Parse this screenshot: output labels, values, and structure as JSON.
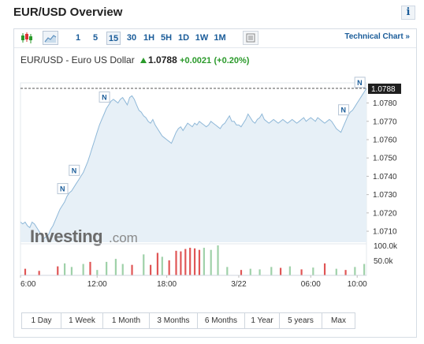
{
  "header": {
    "title": "EUR/USD Overview",
    "info_icon": "i"
  },
  "toolbar": {
    "timeframes": [
      "1",
      "5",
      "15",
      "30",
      "1H",
      "5H",
      "1D",
      "1W",
      "1M"
    ],
    "active_timeframe": "15",
    "technical_chart_label": "Technical Chart »"
  },
  "quote": {
    "name": "EUR/USD - Euro US Dollar",
    "price": "1.0788",
    "change": "+0.0021",
    "change_pct": "(+0.20%)",
    "up_color": "#2b9a2b"
  },
  "logo": {
    "text": "Investing",
    "suffix": ".com"
  },
  "ranges": [
    "1 Day",
    "1 Week",
    "1 Month",
    "3 Months",
    "6 Months",
    "1 Year",
    "5 years",
    "Max"
  ],
  "chart_data": {
    "type": "area",
    "price_ticks": [
      "1.0780",
      "1.0770",
      "1.0760",
      "1.0750",
      "1.0740",
      "1.0730",
      "1.0720",
      "1.0710"
    ],
    "ylim": [
      1.0704,
      1.0791
    ],
    "last_price_label": "1.0788",
    "last_price": 1.0788,
    "volume_ticks": [
      "100.0k",
      "50.0k"
    ],
    "volume_max": 100000,
    "x_tick_labels": [
      "6:00",
      "12:00",
      "18:00",
      "3/22",
      "06:00",
      "10:00"
    ],
    "x_tick_index": [
      0,
      33,
      63,
      94,
      125,
      145
    ],
    "n_points": 150,
    "line_color": "#8fb8d8",
    "fill_color": "#e7f0f7",
    "news_markers": [
      {
        "label": "N",
        "index": 18
      },
      {
        "label": "N",
        "index": 23
      },
      {
        "label": "N",
        "index": 36
      },
      {
        "label": "N",
        "index": 139
      },
      {
        "label": "N",
        "index": 146
      }
    ],
    "prices": [
      1.0715,
      1.0714,
      1.0715,
      1.0713,
      1.0712,
      1.0715,
      1.0714,
      1.0712,
      1.071,
      1.0708,
      1.0706,
      1.0707,
      1.0708,
      1.0711,
      1.0713,
      1.0716,
      1.0719,
      1.0722,
      1.0724,
      1.0726,
      1.0729,
      1.0731,
      1.0732,
      1.0734,
      1.0736,
      1.0738,
      1.074,
      1.0742,
      1.0745,
      1.0748,
      1.0752,
      1.0756,
      1.076,
      1.0764,
      1.0768,
      1.0771,
      1.0774,
      1.0777,
      1.0779,
      1.0781,
      1.0782,
      1.0781,
      1.078,
      1.0782,
      1.0783,
      1.0781,
      1.0779,
      1.0783,
      1.0784,
      1.0782,
      1.0779,
      1.0776,
      1.0775,
      1.0773,
      1.0772,
      1.077,
      1.0769,
      1.0771,
      1.0768,
      1.0766,
      1.0764,
      1.0762,
      1.0761,
      1.076,
      1.0759,
      1.0758,
      1.0761,
      1.0764,
      1.0766,
      1.0767,
      1.0765,
      1.0767,
      1.0769,
      1.0768,
      1.0767,
      1.0769,
      1.0768,
      1.077,
      1.0769,
      1.0768,
      1.0767,
      1.0768,
      1.077,
      1.0769,
      1.0768,
      1.0767,
      1.0766,
      1.0768,
      1.0769,
      1.0771,
      1.0773,
      1.077,
      1.077,
      1.0768,
      1.0768,
      1.0767,
      1.0769,
      1.0771,
      1.0774,
      1.0772,
      1.077,
      1.0769,
      1.0771,
      1.0772,
      1.0774,
      1.0771,
      1.077,
      1.0769,
      1.077,
      1.0771,
      1.077,
      1.0769,
      1.077,
      1.0771,
      1.077,
      1.0769,
      1.077,
      1.0771,
      1.077,
      1.0769,
      1.077,
      1.0771,
      1.0772,
      1.077,
      1.0771,
      1.0772,
      1.0771,
      1.077,
      1.0772,
      1.0771,
      1.077,
      1.0769,
      1.077,
      1.0771,
      1.077,
      1.0768,
      1.0766,
      1.0765,
      1.0764,
      1.0767,
      1.077,
      1.0773,
      1.0775,
      1.0776,
      1.0778,
      1.078,
      1.0782,
      1.0784,
      1.0786,
      1.0788
    ],
    "volume_bars": [
      {
        "index": 2,
        "value": 22000,
        "dir": "down"
      },
      {
        "index": 8,
        "value": 15000,
        "dir": "down"
      },
      {
        "index": 16,
        "value": 30000,
        "dir": "down"
      },
      {
        "index": 19,
        "value": 40000,
        "dir": "up"
      },
      {
        "index": 22,
        "value": 28000,
        "dir": "up"
      },
      {
        "index": 27,
        "value": 38000,
        "dir": "up"
      },
      {
        "index": 30,
        "value": 45000,
        "dir": "down"
      },
      {
        "index": 33,
        "value": 18000,
        "dir": "up"
      },
      {
        "index": 37,
        "value": 45000,
        "dir": "up"
      },
      {
        "index": 41,
        "value": 55000,
        "dir": "up"
      },
      {
        "index": 44,
        "value": 38000,
        "dir": "up"
      },
      {
        "index": 48,
        "value": 35000,
        "dir": "down"
      },
      {
        "index": 53,
        "value": 70000,
        "dir": "up"
      },
      {
        "index": 56,
        "value": 35000,
        "dir": "down"
      },
      {
        "index": 59,
        "value": 75000,
        "dir": "down"
      },
      {
        "index": 61,
        "value": 62000,
        "dir": "up"
      },
      {
        "index": 64,
        "value": 50000,
        "dir": "down"
      },
      {
        "index": 67,
        "value": 82000,
        "dir": "down"
      },
      {
        "index": 69,
        "value": 80000,
        "dir": "down"
      },
      {
        "index": 71,
        "value": 88000,
        "dir": "down"
      },
      {
        "index": 73,
        "value": 92000,
        "dir": "down"
      },
      {
        "index": 75,
        "value": 90000,
        "dir": "down"
      },
      {
        "index": 77,
        "value": 85000,
        "dir": "down"
      },
      {
        "index": 79,
        "value": 92000,
        "dir": "up"
      },
      {
        "index": 82,
        "value": 85000,
        "dir": "up"
      },
      {
        "index": 85,
        "value": 100000,
        "dir": "up"
      },
      {
        "index": 89,
        "value": 28000,
        "dir": "up"
      },
      {
        "index": 95,
        "value": 18000,
        "dir": "down"
      },
      {
        "index": 99,
        "value": 22000,
        "dir": "up"
      },
      {
        "index": 103,
        "value": 20000,
        "dir": "up"
      },
      {
        "index": 108,
        "value": 28000,
        "dir": "up"
      },
      {
        "index": 112,
        "value": 25000,
        "dir": "down"
      },
      {
        "index": 116,
        "value": 30000,
        "dir": "up"
      },
      {
        "index": 121,
        "value": 20000,
        "dir": "down"
      },
      {
        "index": 126,
        "value": 26000,
        "dir": "up"
      },
      {
        "index": 131,
        "value": 40000,
        "dir": "down"
      },
      {
        "index": 136,
        "value": 22000,
        "dir": "up"
      },
      {
        "index": 140,
        "value": 18000,
        "dir": "down"
      },
      {
        "index": 144,
        "value": 28000,
        "dir": "up"
      },
      {
        "index": 148,
        "value": 38000,
        "dir": "up"
      }
    ]
  }
}
